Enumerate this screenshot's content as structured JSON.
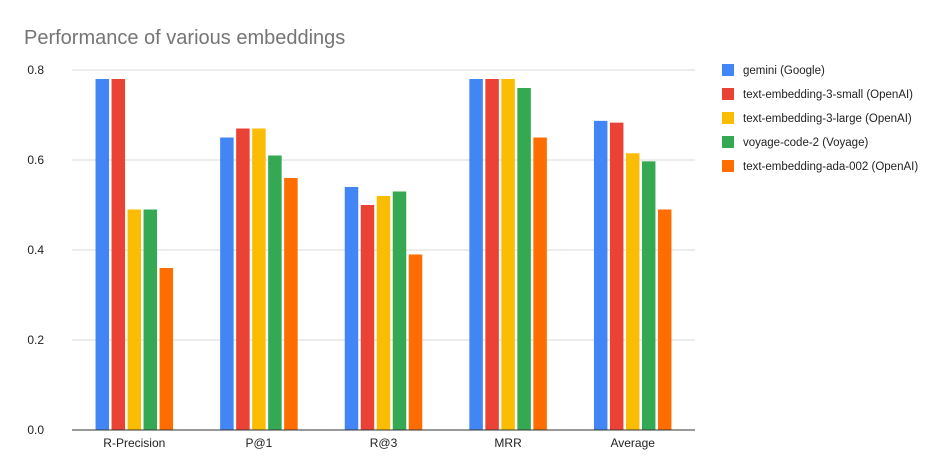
{
  "chart_data": {
    "type": "bar",
    "title": "Performance of various embeddings",
    "xlabel": "",
    "ylabel": "",
    "categories": [
      "R-Precision",
      "P@1",
      "R@3",
      "MRR",
      "Average"
    ],
    "ylim": [
      0,
      0.8
    ],
    "yticks": [
      "0.0",
      "0.2",
      "0.4",
      "0.6",
      "0.8"
    ],
    "grid": true,
    "legend_position": "right",
    "series": [
      {
        "name": "gemini (Google)",
        "color": "#4285f4",
        "values": [
          0.78,
          0.65,
          0.54,
          0.78,
          0.687
        ]
      },
      {
        "name": "text-embedding-3-small (OpenAI)",
        "color": "#ea4335",
        "values": [
          0.78,
          0.67,
          0.5,
          0.78,
          0.683
        ]
      },
      {
        "name": "text-embedding-3-large (OpenAI)",
        "color": "#fbbc04",
        "values": [
          0.49,
          0.67,
          0.52,
          0.78,
          0.615
        ]
      },
      {
        "name": "voyage-code-2 (Voyage)",
        "color": "#34a853",
        "values": [
          0.49,
          0.61,
          0.53,
          0.76,
          0.597
        ]
      },
      {
        "name": "text-embedding-ada-002 (OpenAI)",
        "color": "#ff6d01",
        "values": [
          0.36,
          0.56,
          0.39,
          0.65,
          0.49
        ]
      }
    ]
  }
}
